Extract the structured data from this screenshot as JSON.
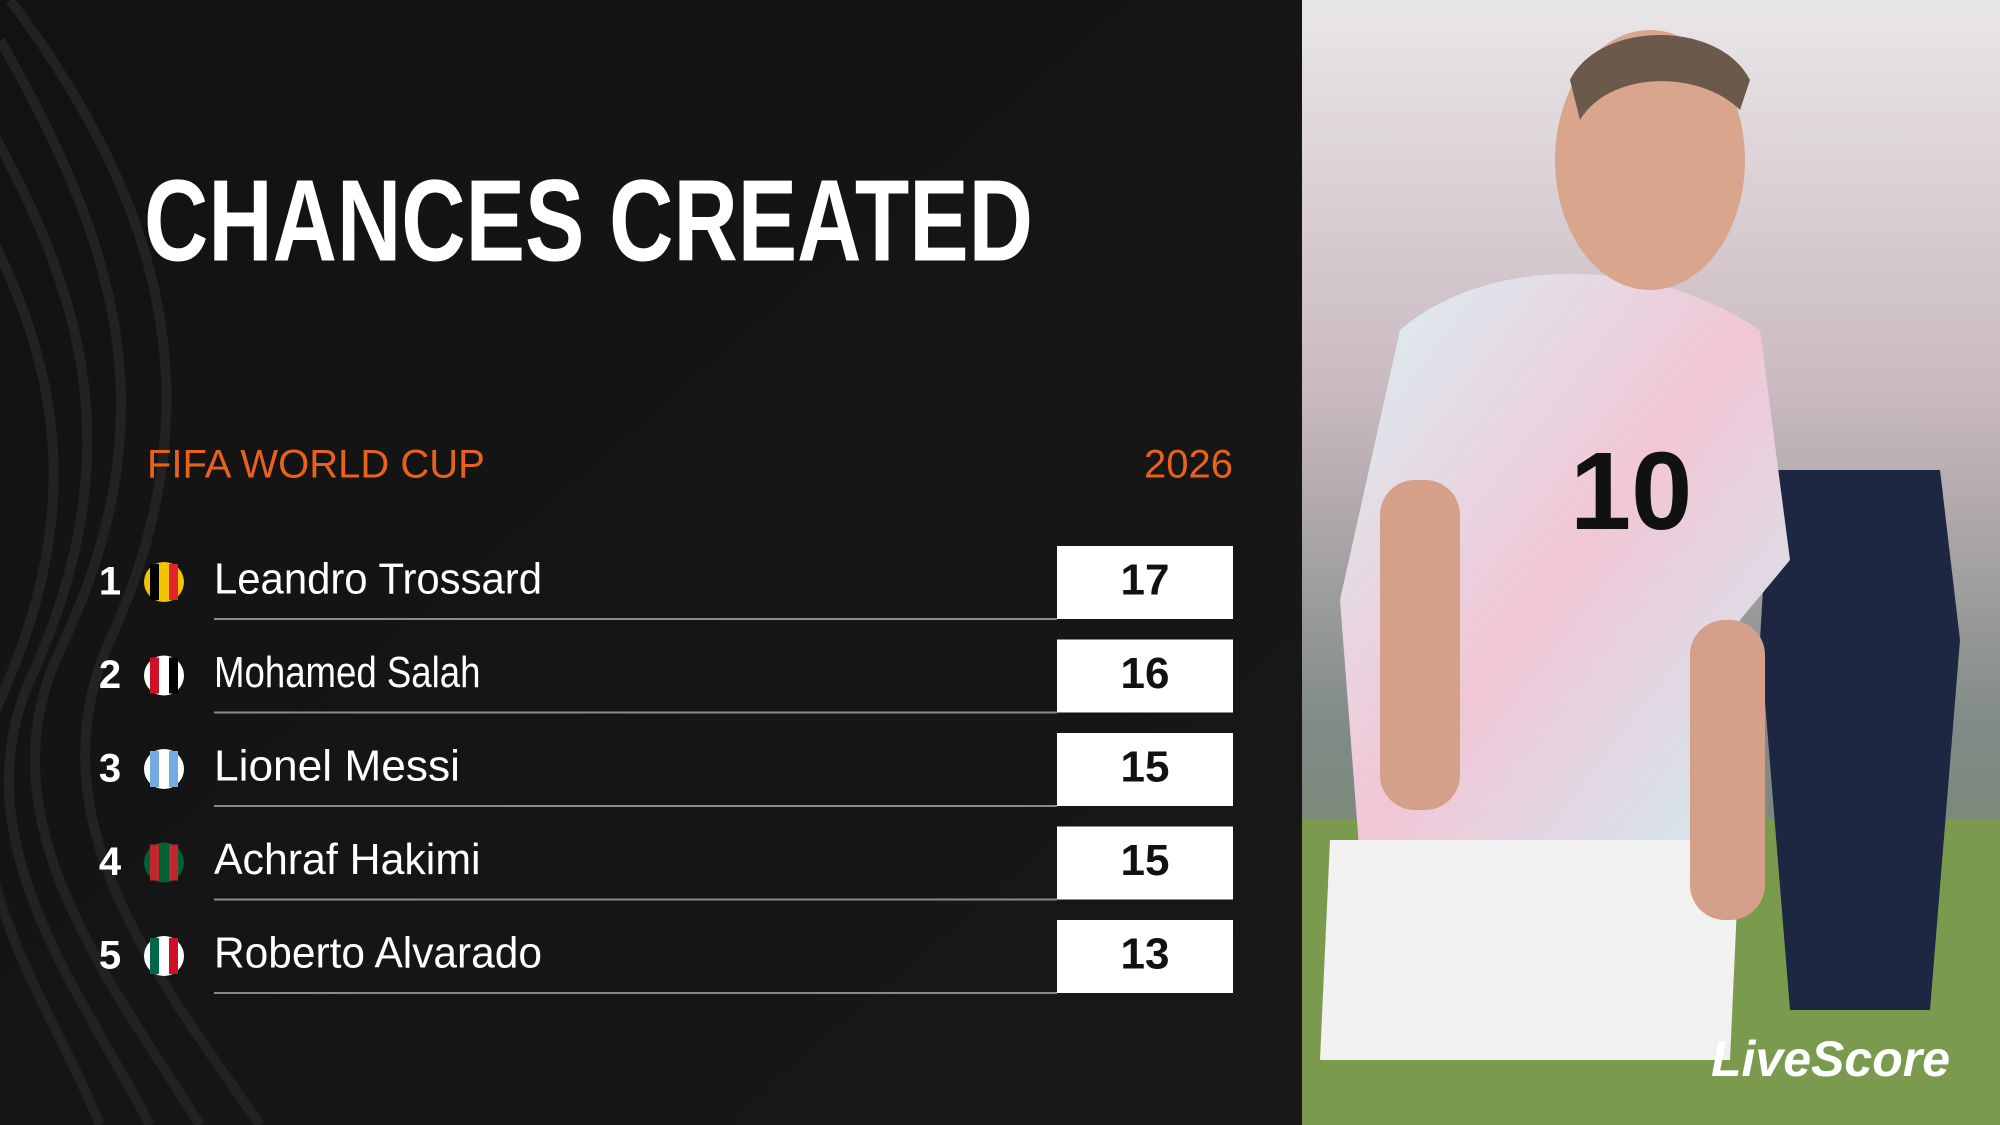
{
  "title": "CHANCES CREATED",
  "competition": "FIFA WORLD CUP",
  "season": "2026",
  "rows": [
    {
      "rank": "1",
      "player": "Leandro Trossard",
      "value": "17"
    },
    {
      "rank": "2",
      "player": "Mohamed Salah",
      "value": "16"
    },
    {
      "rank": "3",
      "player": "Lionel Messi",
      "value": "15"
    },
    {
      "rank": "4",
      "player": "Achraf Hakimi",
      "value": "15"
    },
    {
      "rank": "5",
      "player": "Roberto Alvarado",
      "value": "13"
    }
  ],
  "brand": "LiveScore"
}
